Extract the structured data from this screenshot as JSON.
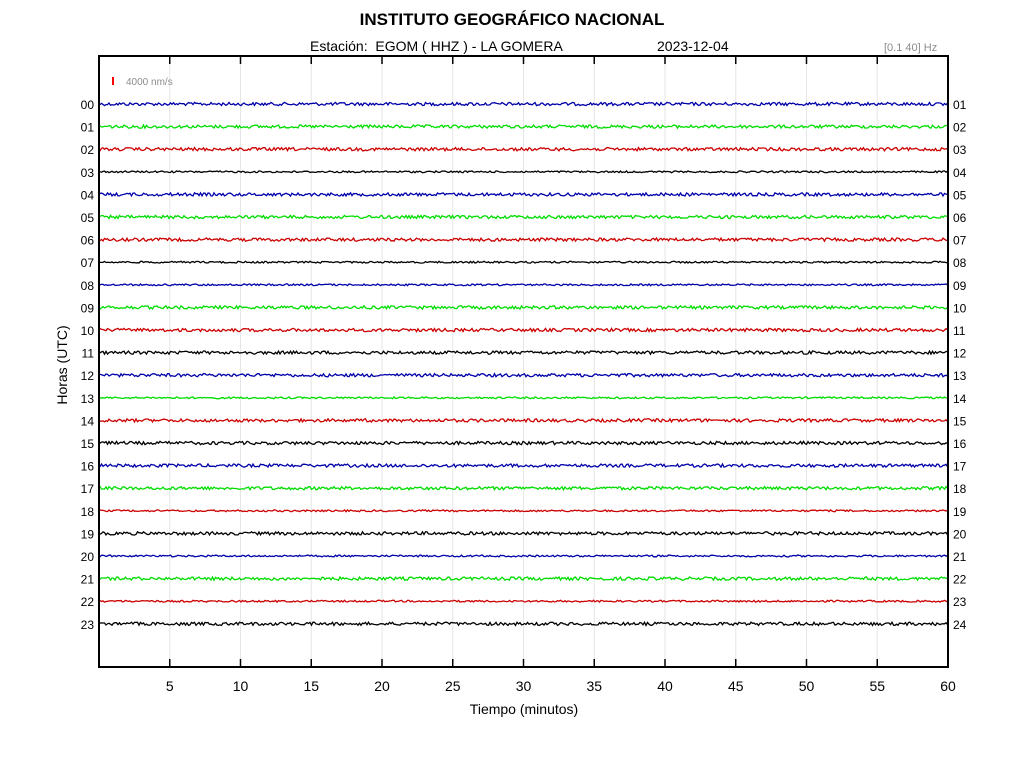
{
  "header": {
    "title": "INSTITUTO GEOGRÁFICO NACIONAL",
    "station": "Estación:  EGOM ( HHZ ) - LA GOMERA",
    "date": "2023-12-04",
    "frequency": "[0.1 40] Hz"
  },
  "scale": {
    "label": "4000 nm/s",
    "color": "#ff0000"
  },
  "chart_data": {
    "type": "line",
    "xlabel": "Tiempo (minutos)",
    "ylabel": "Horas (UTC)",
    "xlim": [
      0,
      60
    ],
    "x_ticks": [
      5,
      10,
      15,
      20,
      25,
      30,
      35,
      40,
      45,
      50,
      55,
      60
    ],
    "left_hour_labels": [
      "00",
      "01",
      "02",
      "03",
      "04",
      "05",
      "06",
      "07",
      "08",
      "09",
      "10",
      "11",
      "12",
      "13",
      "14",
      "15",
      "16",
      "17",
      "18",
      "19",
      "20",
      "21",
      "22",
      "23"
    ],
    "right_hour_labels": [
      "01",
      "02",
      "03",
      "04",
      "05",
      "06",
      "07",
      "08",
      "09",
      "10",
      "11",
      "12",
      "13",
      "14",
      "15",
      "16",
      "17",
      "18",
      "19",
      "20",
      "21",
      "22",
      "23",
      "24"
    ],
    "trace_colors": [
      "#0000aa",
      "#00dd00",
      "#cc0000",
      "#000000"
    ],
    "grid": true,
    "grid_axis": "x"
  }
}
